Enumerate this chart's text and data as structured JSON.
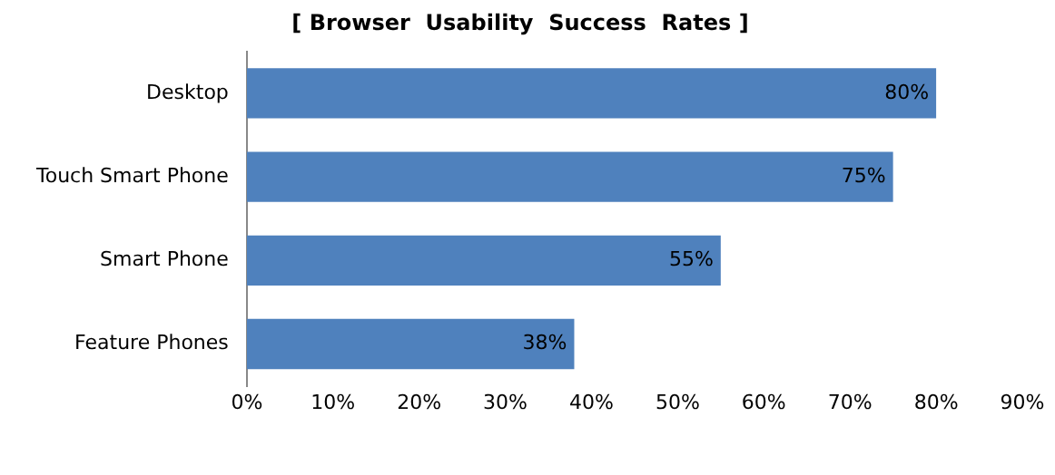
{
  "chart_data": {
    "type": "bar",
    "orientation": "horizontal",
    "title": "[ Browser  Usability  Success  Rates ]",
    "categories": [
      "Desktop",
      "Touch Smart Phone",
      "Smart Phone",
      "Feature Phones"
    ],
    "values": [
      80,
      75,
      55,
      38
    ],
    "color": "#4f81bd",
    "value_labels": [
      "80%",
      "75%",
      "55%",
      "38%"
    ],
    "xlim": [
      0,
      90
    ],
    "xticks": [
      {
        "value": 0,
        "label": "0%"
      },
      {
        "value": 10,
        "label": "10%"
      },
      {
        "value": 20,
        "label": "20%"
      },
      {
        "value": 30,
        "label": "30%"
      },
      {
        "value": 40,
        "label": "40%"
      },
      {
        "value": 50,
        "label": "50%"
      },
      {
        "value": 60,
        "label": "60%"
      },
      {
        "value": 70,
        "label": "70%"
      },
      {
        "value": 80,
        "label": "80%"
      },
      {
        "value": 90,
        "label": "90%"
      }
    ],
    "grid": false,
    "legend": false
  }
}
